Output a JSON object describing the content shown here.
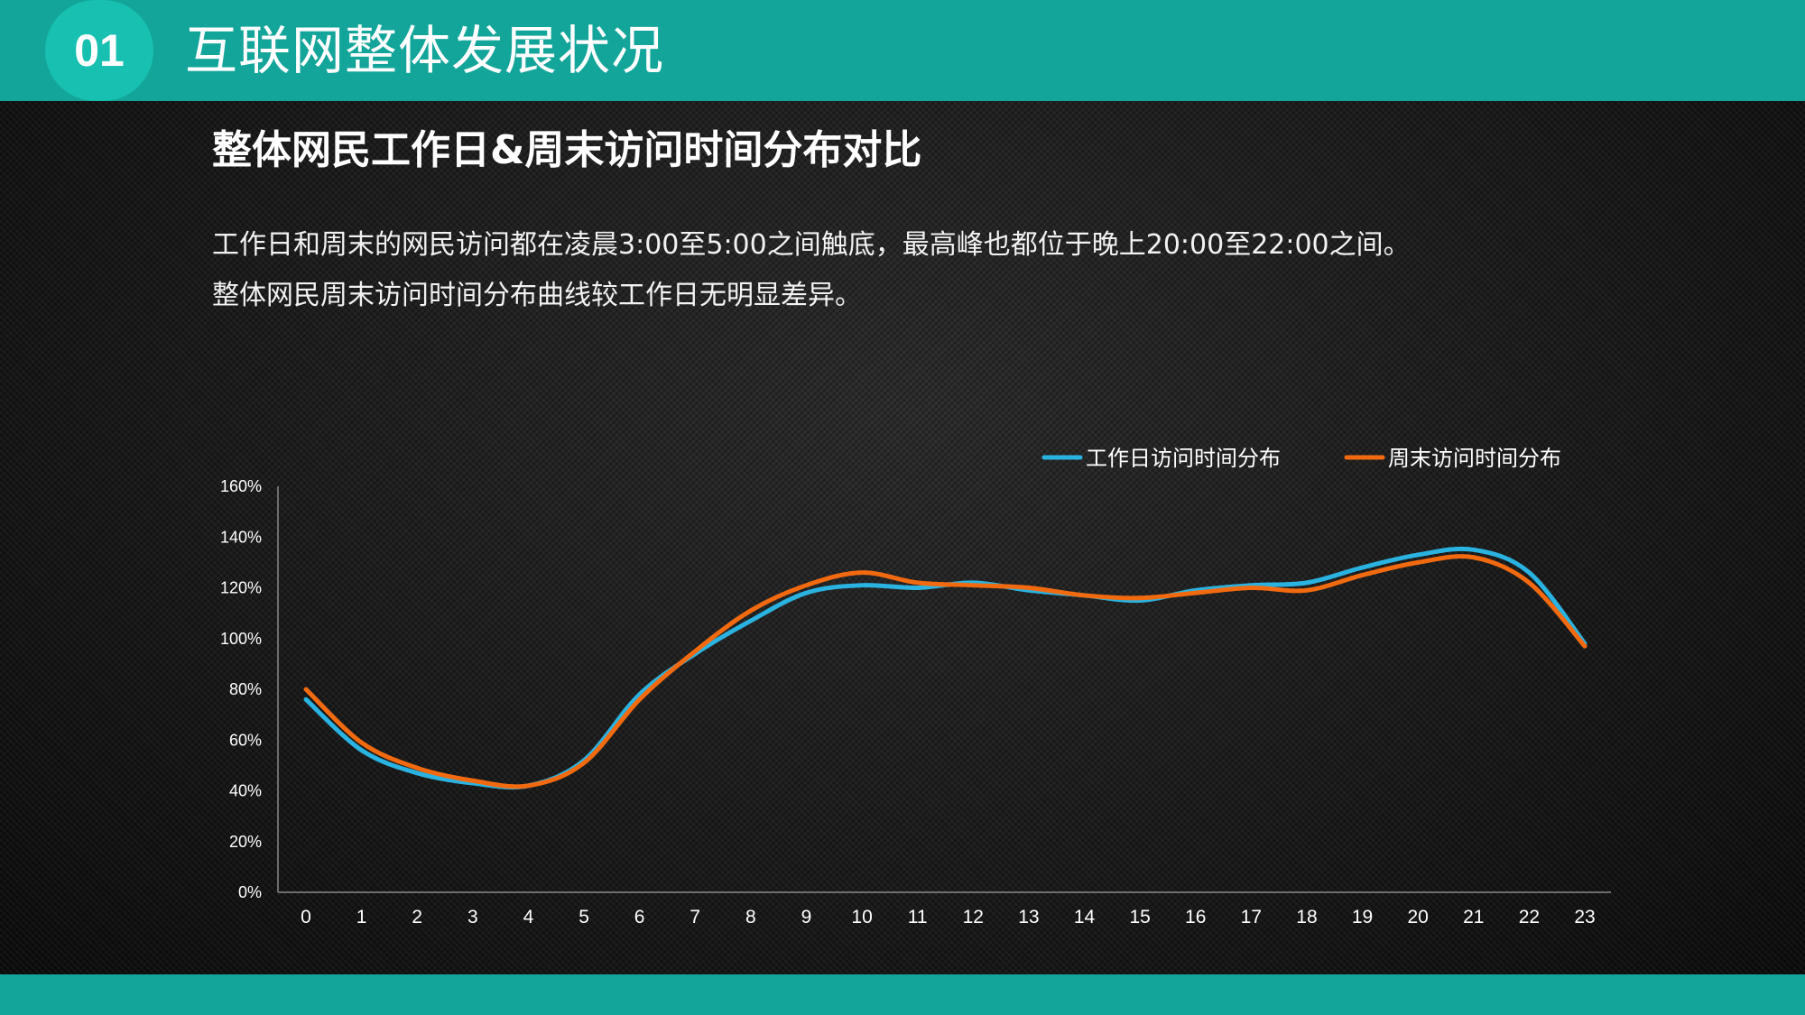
{
  "header": {
    "badge": "01",
    "title": "互联网整体发展状况"
  },
  "section": {
    "title": "整体网民工作日&周末访问时间分布对比",
    "description_lines": [
      "工作日和周末的网民访问都在凌晨3:00至5:00之间触底，最高峰也都位于晚上20:00至22:00之间。",
      "整体网民周末访问时间分布曲线较工作日无明显差异。"
    ]
  },
  "colors": {
    "accent": "#13a59a",
    "badge": "#18c0b1",
    "workday": "#2ab3e0",
    "weekend": "#f26a10"
  },
  "chart_data": {
    "type": "line",
    "smooth": true,
    "x": [
      "0",
      "1",
      "2",
      "3",
      "4",
      "5",
      "6",
      "7",
      "8",
      "9",
      "10",
      "11",
      "12",
      "13",
      "14",
      "15",
      "16",
      "17",
      "18",
      "19",
      "20",
      "21",
      "22",
      "23"
    ],
    "series": [
      {
        "name": "工作日访问时间分布",
        "color": "#2ab3e0",
        "values": [
          0.76,
          0.56,
          0.47,
          0.43,
          0.42,
          0.52,
          0.78,
          0.94,
          1.07,
          1.18,
          1.21,
          1.2,
          1.22,
          1.19,
          1.17,
          1.15,
          1.19,
          1.21,
          1.22,
          1.28,
          1.33,
          1.35,
          1.26,
          0.98
        ]
      },
      {
        "name": "周末访问时间分布",
        "color": "#f26a10",
        "values": [
          0.8,
          0.59,
          0.49,
          0.44,
          0.42,
          0.51,
          0.76,
          0.95,
          1.11,
          1.21,
          1.26,
          1.22,
          1.21,
          1.2,
          1.17,
          1.16,
          1.18,
          1.2,
          1.19,
          1.25,
          1.3,
          1.32,
          1.22,
          0.97
        ]
      }
    ],
    "y_ticks": [
      "0%",
      "20%",
      "40%",
      "60%",
      "80%",
      "100%",
      "120%",
      "140%",
      "160%"
    ],
    "ylim": [
      0,
      1.6
    ],
    "grid": false,
    "legend": "top-right"
  }
}
